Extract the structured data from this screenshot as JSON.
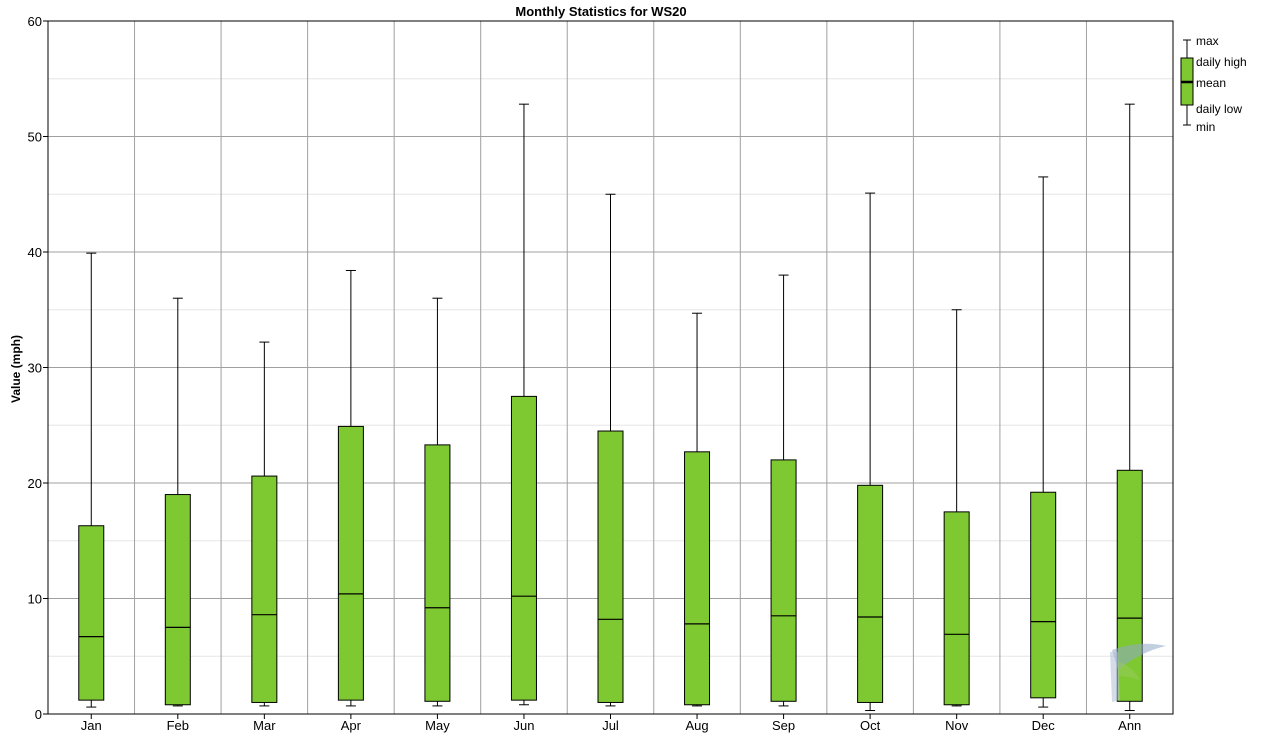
{
  "chart_data": {
    "type": "box",
    "title": "Monthly Statistics for WS20",
    "xlabel": "",
    "ylabel": "Value (mph)",
    "ylim": [
      0,
      60
    ],
    "yticks": [
      0,
      10,
      20,
      30,
      40,
      50,
      60
    ],
    "grid": true,
    "legend_position": "top-right",
    "legend": {
      "max": "max",
      "daily_high": "daily high",
      "mean": "mean",
      "daily_low": "daily low",
      "min": "min"
    },
    "box_color": "#7ec832",
    "categories": [
      "Jan",
      "Feb",
      "Mar",
      "Apr",
      "May",
      "Jun",
      "Jul",
      "Aug",
      "Sep",
      "Oct",
      "Nov",
      "Dec",
      "Ann"
    ],
    "max": [
      39.9,
      36.0,
      32.2,
      38.4,
      36.0,
      52.8,
      45.0,
      34.7,
      38.0,
      45.1,
      35.0,
      46.5,
      52.8
    ],
    "daily_high": [
      16.3,
      19.0,
      20.6,
      24.9,
      23.3,
      27.5,
      24.5,
      22.7,
      22.0,
      19.8,
      17.5,
      19.2,
      21.1
    ],
    "mean": [
      6.7,
      7.5,
      8.6,
      10.4,
      9.2,
      10.2,
      8.2,
      7.8,
      8.5,
      8.4,
      6.9,
      8.0,
      8.3
    ],
    "daily_low": [
      1.2,
      0.8,
      1.0,
      1.2,
      1.1,
      1.2,
      1.0,
      0.8,
      1.1,
      1.0,
      0.8,
      1.4,
      1.1
    ],
    "min": [
      0.6,
      0.7,
      0.7,
      0.7,
      0.7,
      0.8,
      0.7,
      0.7,
      0.7,
      0.3,
      0.7,
      0.6,
      0.3
    ]
  }
}
